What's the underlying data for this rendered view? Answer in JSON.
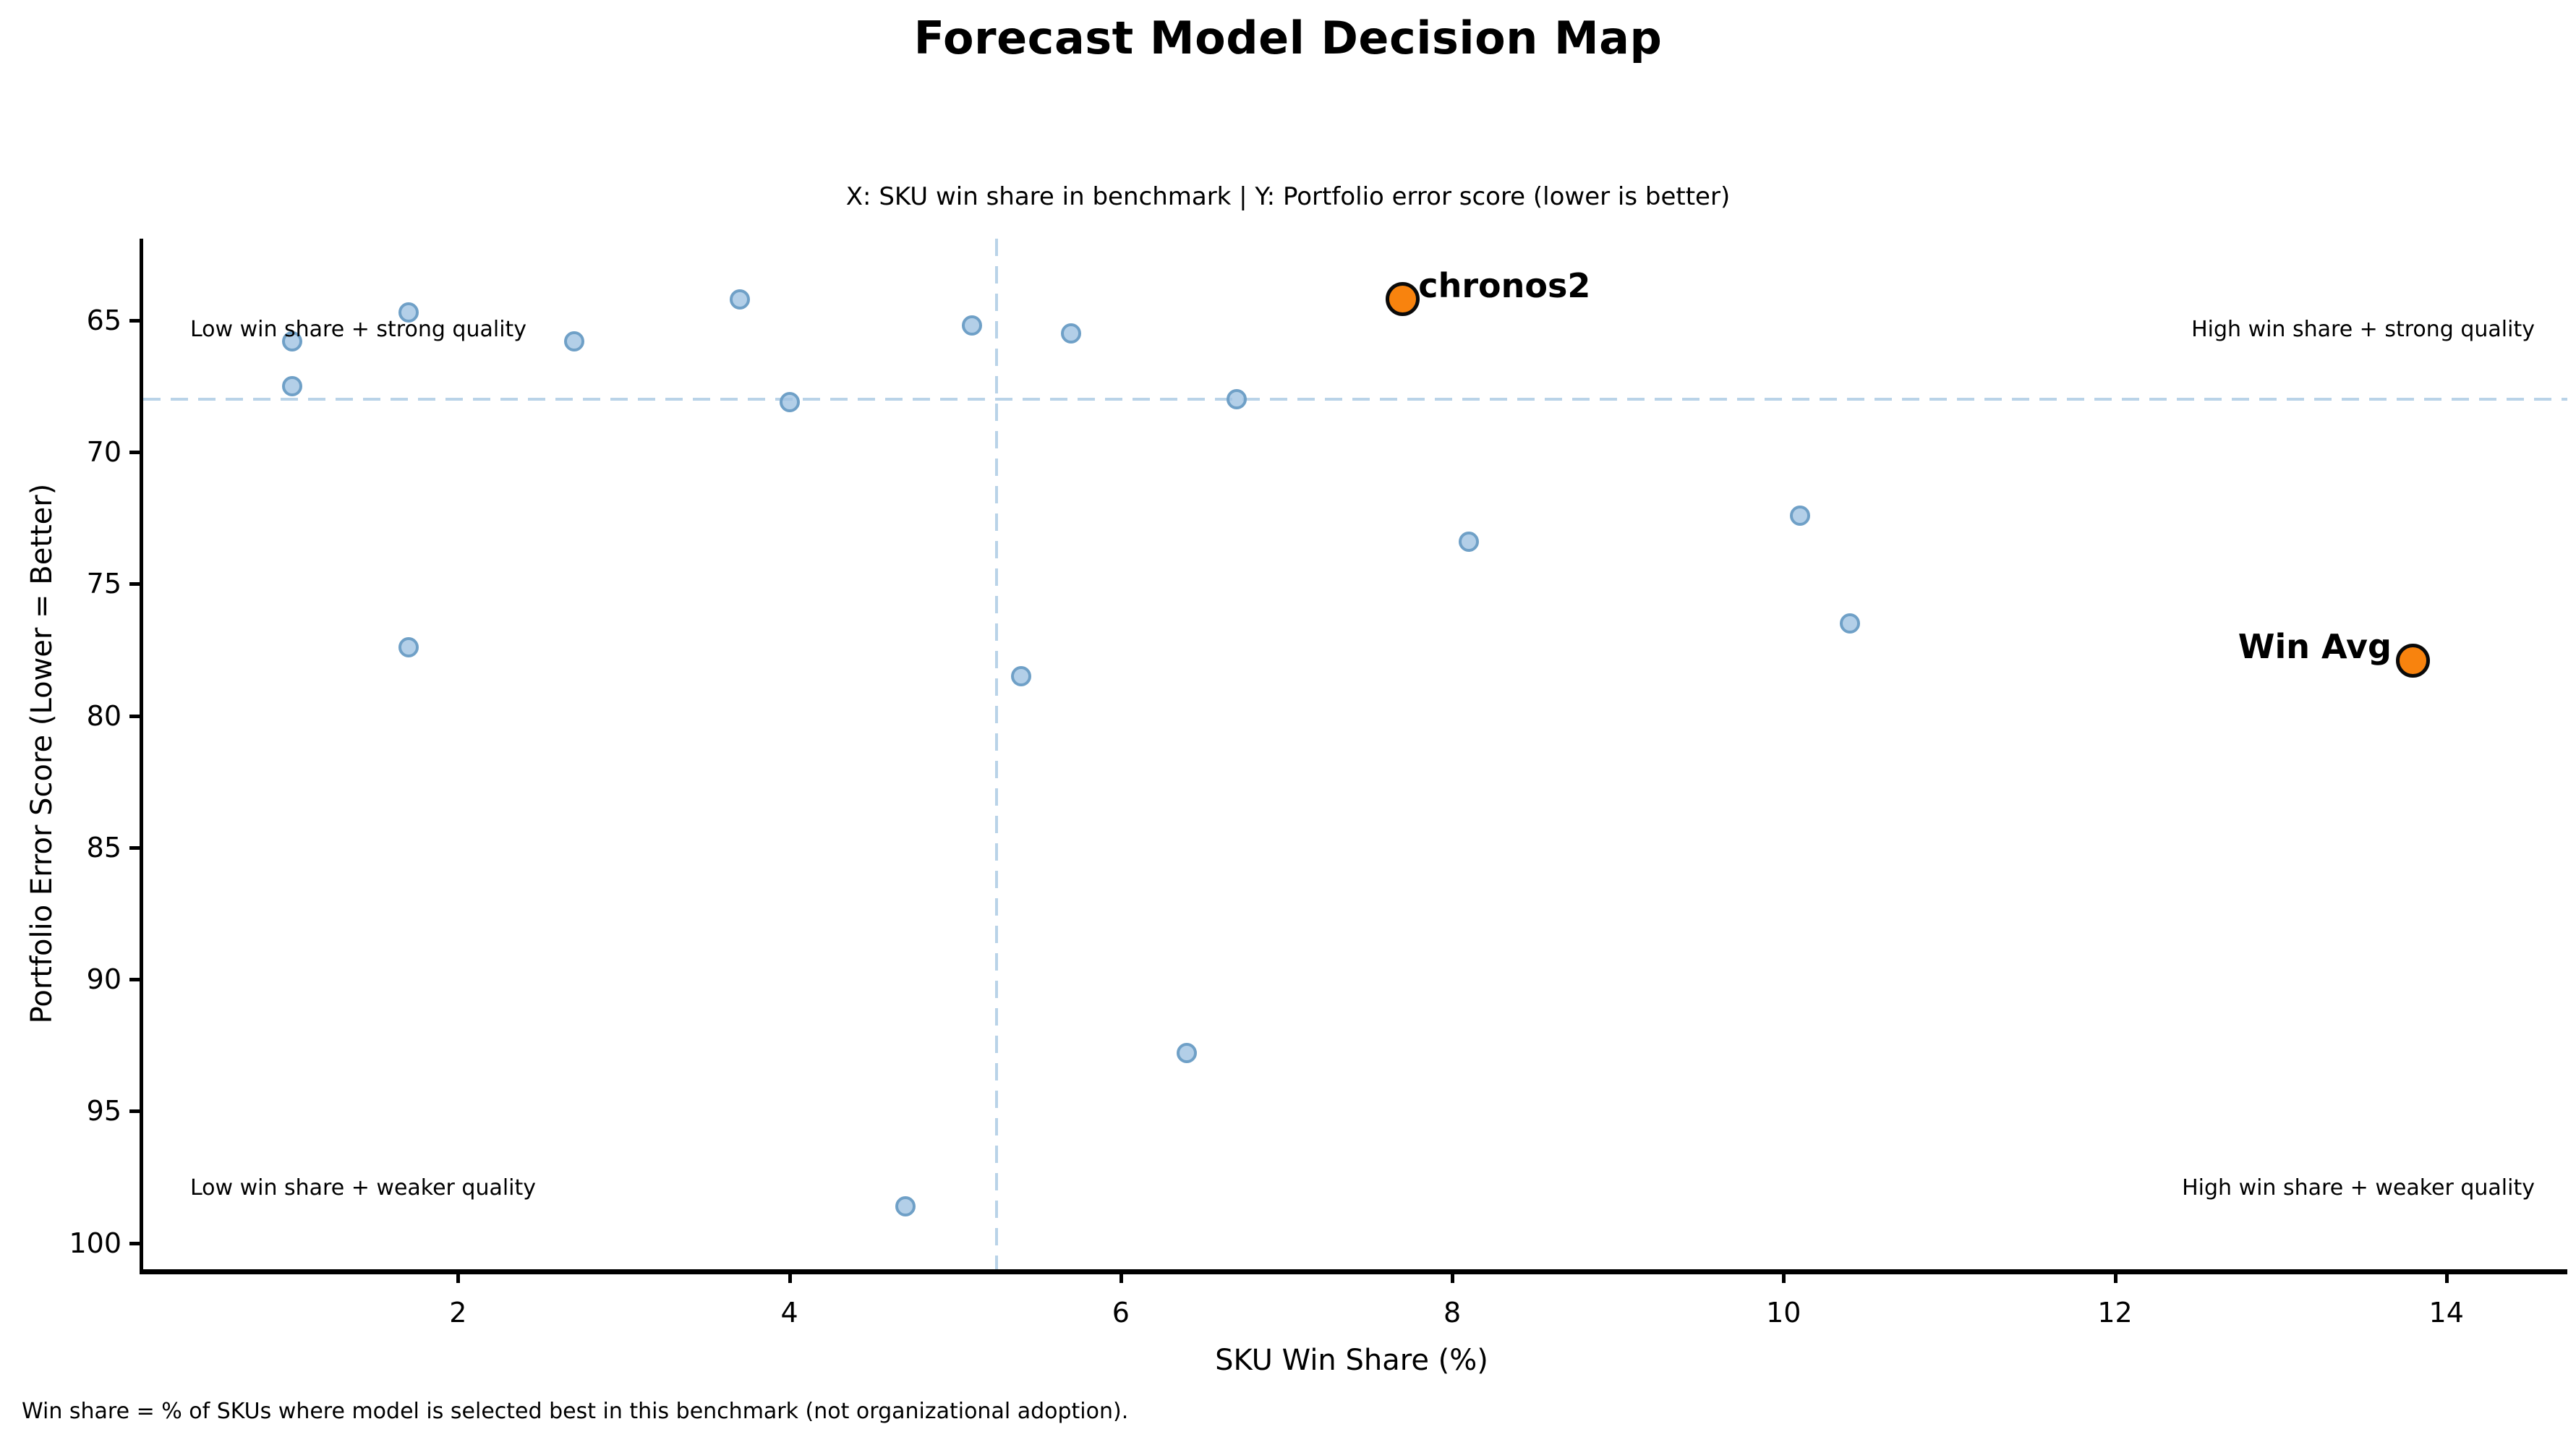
{
  "chart_data": {
    "type": "scatter",
    "title": "Forecast Model Decision Map",
    "subtitle": "X: SKU win share in benchmark | Y: Portfolio error score (lower is better)",
    "xlabel": "SKU Win Share (%)",
    "ylabel": "Portfolio Error Score (Lower = Better)",
    "footnote": "Win share = % of SKUs where model is selected best in this benchmark (not organizational adoption).",
    "x_ticks": [
      2,
      4,
      6,
      8,
      10,
      12,
      14
    ],
    "y_ticks": [
      65,
      70,
      75,
      80,
      85,
      90,
      95,
      100
    ],
    "xlim": [
      0.1,
      14.73
    ],
    "ylim_top": 61.9,
    "ylim_bottom": 101.0,
    "y_axis_inverted": true,
    "grid": false,
    "legend": "none",
    "series": [
      {
        "name": "models",
        "marker": "circle",
        "fill_color": "#9dc1e2",
        "edge_color": "#6fa0c7",
        "points": [
          [
            1.0,
            65.8
          ],
          [
            1.0,
            67.5
          ],
          [
            1.7,
            64.7
          ],
          [
            1.7,
            77.4
          ],
          [
            2.7,
            65.8
          ],
          [
            3.7,
            64.2
          ],
          [
            4.0,
            68.1
          ],
          [
            4.7,
            98.6
          ],
          [
            5.1,
            65.2
          ],
          [
            5.4,
            78.5
          ],
          [
            5.7,
            65.5
          ],
          [
            6.4,
            92.8
          ],
          [
            6.7,
            68.0
          ],
          [
            8.1,
            73.4
          ],
          [
            10.1,
            72.4
          ],
          [
            10.4,
            76.5
          ]
        ]
      },
      {
        "name": "highlighted-models",
        "marker": "circle",
        "fill_color": "#f8830e",
        "edge_color": "#0a0a0a",
        "points": [
          {
            "label": "chronos2",
            "x": 7.7,
            "y": 64.2,
            "label_side": "right"
          },
          {
            "label": "Win Avg",
            "x": 13.8,
            "y": 77.9,
            "label_side": "left"
          }
        ]
      }
    ],
    "reference_lines": {
      "horizontal_y": 68.0,
      "vertical_x": 5.25,
      "style": "dashed",
      "color": "#b9d3e8"
    },
    "quadrant_labels": [
      {
        "text": "Low win share + strong quality",
        "corner": "top-left"
      },
      {
        "text": "High win share + strong quality",
        "corner": "top-right"
      },
      {
        "text": "Low win share + weaker quality",
        "corner": "bottom-left"
      },
      {
        "text": "High win share + weaker quality",
        "corner": "bottom-right"
      }
    ],
    "colors": {
      "point_fill": "#9dc1e2",
      "point_edge": "#6fa0c7",
      "highlight_fill": "#f8830e",
      "highlight_edge": "#0a0a0a",
      "reference_line": "#b9d3e8",
      "axis": "#000000",
      "text": "#000000"
    }
  }
}
